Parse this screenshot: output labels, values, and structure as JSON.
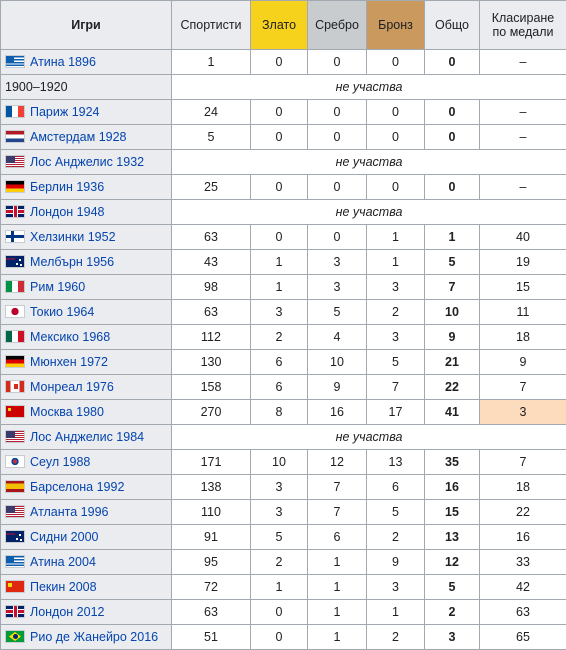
{
  "headers": {
    "games": "Игри",
    "athletes": "Спортисти",
    "gold": "Злато",
    "silver": "Сребро",
    "bronze": "Бронз",
    "total": "Общо",
    "rank": "Класиране по медали"
  },
  "colors": {
    "gold": "#f7d21d",
    "silver": "#c9cccf",
    "bronze": "#c9995e",
    "highlight": "#fcdcbd",
    "link": "#0645ad"
  },
  "rows": [
    {
      "flag": "flag-gr",
      "flag_icon": "greece-flag-icon",
      "games": "Атина 1896",
      "athletes": "1",
      "gold": "0",
      "silver": "0",
      "bronze": "0",
      "total": "0",
      "rank": "–"
    },
    {
      "games": "1900–1920",
      "nopart": "не участва"
    },
    {
      "flag": "flag-fr",
      "flag_icon": "france-flag-icon",
      "games": "Париж 1924",
      "athletes": "24",
      "gold": "0",
      "silver": "0",
      "bronze": "0",
      "total": "0",
      "rank": "–"
    },
    {
      "flag": "flag-nl",
      "flag_icon": "netherlands-flag-icon",
      "games": "Амстердам 1928",
      "athletes": "5",
      "gold": "0",
      "silver": "0",
      "bronze": "0",
      "total": "0",
      "rank": "–"
    },
    {
      "flag": "flag-us",
      "flag_icon": "usa-flag-icon",
      "games": "Лос Анджелис 1932",
      "nopart": "не участва"
    },
    {
      "flag": "flag-de",
      "flag_icon": "germany-flag-icon",
      "games": "Берлин 1936",
      "athletes": "25",
      "gold": "0",
      "silver": "0",
      "bronze": "0",
      "total": "0",
      "rank": "–"
    },
    {
      "flag": "flag-gb",
      "flag_icon": "uk-flag-icon",
      "games": "Лондон 1948",
      "nopart": "не участва"
    },
    {
      "flag": "flag-fi",
      "flag_icon": "finland-flag-icon",
      "games": "Хелзинки 1952",
      "athletes": "63",
      "gold": "0",
      "silver": "0",
      "bronze": "1",
      "total": "1",
      "rank": "40"
    },
    {
      "flag": "flag-au",
      "flag_icon": "australia-flag-icon",
      "games": "Мелбърн 1956",
      "athletes": "43",
      "gold": "1",
      "silver": "3",
      "bronze": "1",
      "total": "5",
      "rank": "19"
    },
    {
      "flag": "flag-it",
      "flag_icon": "italy-flag-icon",
      "games": "Рим 1960",
      "athletes": "98",
      "gold": "1",
      "silver": "3",
      "bronze": "3",
      "total": "7",
      "rank": "15"
    },
    {
      "flag": "flag-jp",
      "flag_icon": "japan-flag-icon",
      "games": "Токио 1964",
      "athletes": "63",
      "gold": "3",
      "silver": "5",
      "bronze": "2",
      "total": "10",
      "rank": "11"
    },
    {
      "flag": "flag-mx",
      "flag_icon": "mexico-flag-icon",
      "games": "Мексико 1968",
      "athletes": "112",
      "gold": "2",
      "silver": "4",
      "bronze": "3",
      "total": "9",
      "rank": "18"
    },
    {
      "flag": "flag-de",
      "flag_icon": "germany-flag-icon",
      "games": "Мюнхен 1972",
      "athletes": "130",
      "gold": "6",
      "silver": "10",
      "bronze": "5",
      "total": "21",
      "rank": "9"
    },
    {
      "flag": "flag-ca",
      "flag_icon": "canada-flag-icon",
      "games": "Монреал 1976",
      "athletes": "158",
      "gold": "6",
      "silver": "9",
      "bronze": "7",
      "total": "22",
      "rank": "7"
    },
    {
      "flag": "flag-su",
      "flag_icon": "ussr-flag-icon",
      "games": "Москва 1980",
      "athletes": "270",
      "gold": "8",
      "silver": "16",
      "bronze": "17",
      "total": "41",
      "rank": "3",
      "highlight": true
    },
    {
      "flag": "flag-us",
      "flag_icon": "usa-flag-icon",
      "games": "Лос Анджелис 1984",
      "nopart": "не участва"
    },
    {
      "flag": "flag-kr",
      "flag_icon": "south-korea-flag-icon",
      "games": "Сеул 1988",
      "athletes": "171",
      "gold": "10",
      "silver": "12",
      "bronze": "13",
      "total": "35",
      "rank": "7"
    },
    {
      "flag": "flag-es",
      "flag_icon": "spain-flag-icon",
      "games": "Барселона 1992",
      "athletes": "138",
      "gold": "3",
      "silver": "7",
      "bronze": "6",
      "total": "16",
      "rank": "18"
    },
    {
      "flag": "flag-us",
      "flag_icon": "usa-flag-icon",
      "games": "Атланта 1996",
      "athletes": "110",
      "gold": "3",
      "silver": "7",
      "bronze": "5",
      "total": "15",
      "rank": "22"
    },
    {
      "flag": "flag-au",
      "flag_icon": "australia-flag-icon",
      "games": "Сидни 2000",
      "athletes": "91",
      "gold": "5",
      "silver": "6",
      "bronze": "2",
      "total": "13",
      "rank": "16"
    },
    {
      "flag": "flag-gr",
      "flag_icon": "greece-flag-icon",
      "games": "Атина 2004",
      "athletes": "95",
      "gold": "2",
      "silver": "1",
      "bronze": "9",
      "total": "12",
      "rank": "33"
    },
    {
      "flag": "flag-cn",
      "flag_icon": "china-flag-icon",
      "games": "Пекин 2008",
      "athletes": "72",
      "gold": "1",
      "silver": "1",
      "bronze": "3",
      "total": "5",
      "rank": "42"
    },
    {
      "flag": "flag-gb",
      "flag_icon": "uk-flag-icon",
      "games": "Лондон 2012",
      "athletes": "63",
      "gold": "0",
      "silver": "1",
      "bronze": "1",
      "total": "2",
      "rank": "63"
    },
    {
      "flag": "flag-br",
      "flag_icon": "brazil-flag-icon",
      "games": "Рио де Жанейро 2016",
      "athletes": "51",
      "gold": "0",
      "silver": "1",
      "bronze": "2",
      "total": "3",
      "rank": "65"
    }
  ]
}
